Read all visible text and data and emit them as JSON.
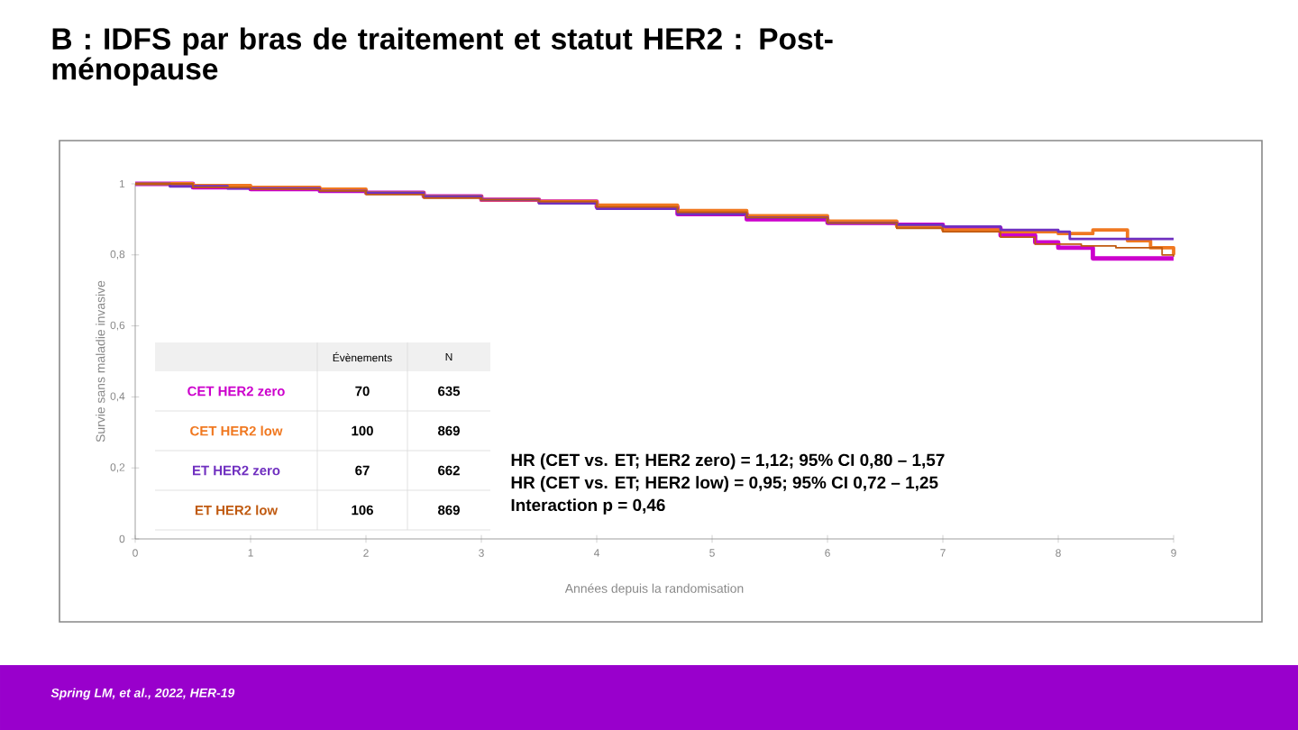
{
  "chart_data": {
    "type": "step",
    "title": "B : IDFS par bras de traitement et statut HER2 : Post-ménopause",
    "xlabel": "Années depuis la randomisation",
    "ylabel": "Survie sans maladie invasive",
    "xlim": [
      0,
      9
    ],
    "xticks": [
      0,
      1,
      2,
      3,
      4,
      5,
      6,
      7,
      8,
      9
    ],
    "ylim": [
      0,
      1
    ],
    "yticks": [
      {
        "value": 0,
        "label": "0"
      },
      {
        "value": 0.2,
        "label": "0,2"
      },
      {
        "value": 0.4,
        "label": "0,4"
      },
      {
        "value": 0.6,
        "label": "0,6"
      },
      {
        "value": 0.8,
        "label": "0,8"
      },
      {
        "value": 1,
        "label": "1"
      }
    ],
    "grid": false,
    "legend": false,
    "marker": "none",
    "line_style": "solid",
    "series": [
      {
        "name": "CET HER2 zero",
        "color": "#cc00cc",
        "x": [
          0,
          0.5,
          1,
          1.6,
          2,
          2.5,
          3,
          3.5,
          4,
          4.7,
          5.3,
          6,
          6.6,
          7,
          7.5,
          7.8,
          8.0,
          8.3,
          8.6,
          9
        ],
        "values": [
          1,
          0.99,
          0.985,
          0.98,
          0.975,
          0.965,
          0.955,
          0.95,
          0.935,
          0.915,
          0.9,
          0.89,
          0.885,
          0.875,
          0.855,
          0.835,
          0.82,
          0.79,
          0.79,
          0.79
        ]
      },
      {
        "name": "CET HER2 low",
        "color": "#f07820",
        "x": [
          0,
          0.5,
          1,
          1.6,
          2,
          2.5,
          3,
          3.5,
          4,
          4.7,
          5.3,
          6,
          6.6,
          7,
          7.5,
          8.0,
          8.3,
          8.6,
          8.8,
          9
        ],
        "values": [
          1,
          0.995,
          0.99,
          0.985,
          0.975,
          0.965,
          0.955,
          0.95,
          0.94,
          0.925,
          0.91,
          0.895,
          0.88,
          0.87,
          0.865,
          0.86,
          0.87,
          0.84,
          0.82,
          0.8
        ]
      },
      {
        "name": "ET HER2 zero",
        "color": "#7030c0",
        "x": [
          0,
          0.3,
          0.8,
          1.6,
          2,
          2.5,
          3,
          3.5,
          4,
          4.7,
          5.3,
          6,
          6.6,
          7,
          7.5,
          8.0,
          8.1,
          8.5,
          9
        ],
        "values": [
          1,
          0.993,
          0.987,
          0.98,
          0.975,
          0.965,
          0.955,
          0.945,
          0.93,
          0.915,
          0.905,
          0.89,
          0.885,
          0.88,
          0.87,
          0.865,
          0.845,
          0.845,
          0.845
        ]
      },
      {
        "name": "ET HER2 low",
        "color": "#c05a10",
        "x": [
          0,
          0.5,
          1,
          1.6,
          2,
          2.5,
          3,
          3.5,
          4,
          4.7,
          5.3,
          6,
          6.6,
          7,
          7.5,
          7.8,
          8.2,
          8.5,
          8.9,
          9
        ],
        "values": [
          1,
          0.99,
          0.985,
          0.98,
          0.97,
          0.96,
          0.955,
          0.95,
          0.935,
          0.92,
          0.905,
          0.89,
          0.875,
          0.865,
          0.85,
          0.83,
          0.825,
          0.82,
          0.8,
          0.795
        ]
      }
    ],
    "annotations": [
      "Évènements",
      "N",
      "70",
      "635",
      "100",
      "869",
      "67",
      "662",
      "106",
      "869",
      "HR (CET vs. ET; HER2 zero) = 1,12; 95% CI 0,80 – 1,57",
      "HR (CET vs. ET; HER2 low) = 0,95; 95% CI 0,72 – 1,25",
      "Interaction p = 0,46",
      "Spring LM, et al., 2022, HER-19"
    ]
  }
}
